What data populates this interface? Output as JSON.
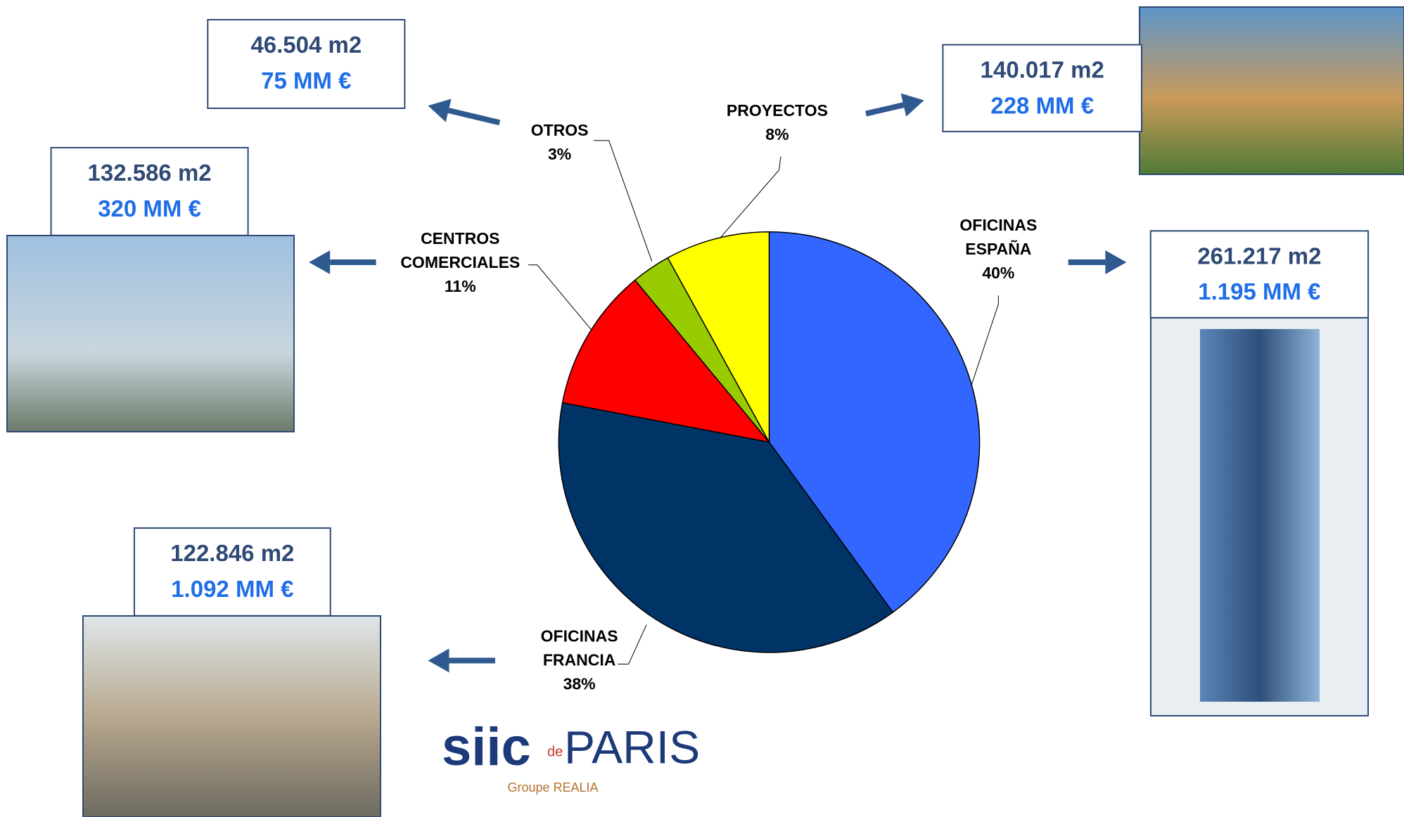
{
  "chart_data": {
    "type": "pie",
    "categories": [
      "OFICINAS ESPAÑA",
      "OFICINAS FRANCIA",
      "CENTROS COMERCIALES",
      "OTROS",
      "PROYECTOS"
    ],
    "values": [
      40,
      38,
      11,
      3,
      8
    ],
    "value_labels": [
      "40%",
      "38%",
      "11%",
      "3%",
      "8%"
    ],
    "colors": [
      "#3366ff",
      "#003366",
      "#ff0000",
      "#99cc00",
      "#ffff00"
    ],
    "segment_details": [
      {
        "area": "261.217 m2",
        "value": "1.195 MM €"
      },
      {
        "area": "122.846 m2",
        "value": "1.092 MM €"
      },
      {
        "area": "132.586 m2",
        "value": "320 MM €"
      },
      {
        "area": "46.504 m2",
        "value": "75 MM €"
      },
      {
        "area": "140.017 m2",
        "value": "228 MM €"
      }
    ]
  },
  "logo": {
    "brand": "siic",
    "de": "de",
    "city": "PARIS",
    "group": "Groupe REALIA"
  }
}
